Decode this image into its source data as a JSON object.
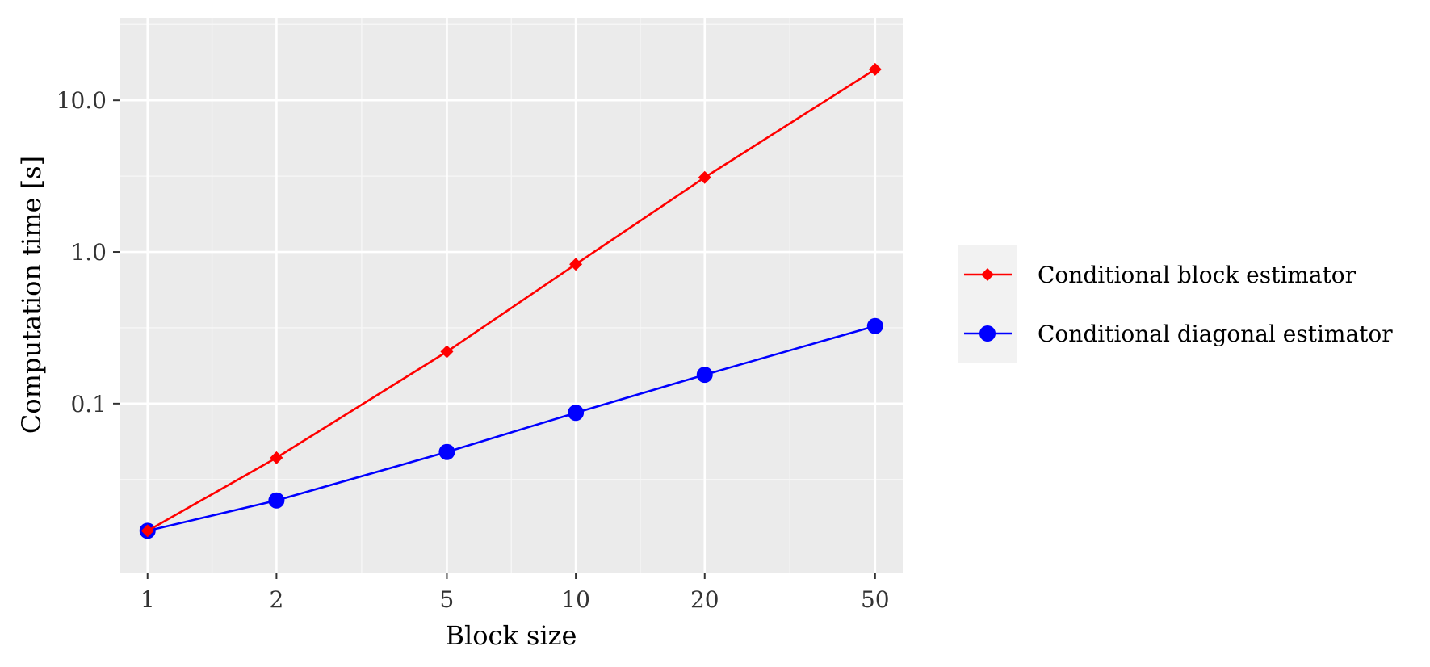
{
  "chart_data": {
    "type": "line",
    "xlabel": "Block size",
    "ylabel": "Computation time [s]",
    "x_scale": "log",
    "y_scale": "log",
    "x_ticks": [
      1,
      2,
      5,
      10,
      20,
      50
    ],
    "x_tick_labels": [
      "1",
      "2",
      "5",
      "10",
      "20",
      "50"
    ],
    "y_ticks": [
      0.1,
      1.0,
      10.0
    ],
    "y_tick_labels": [
      "0.1",
      "1.0",
      "10.0"
    ],
    "xlim": [
      0.86,
      58
    ],
    "ylim": [
      0.0077,
      35
    ],
    "grid": true,
    "legend_position": "right",
    "x": [
      1,
      2,
      5,
      10,
      20,
      50
    ],
    "series": [
      {
        "name": "Conditional block estimator",
        "color": "#ff0000",
        "marker": "diamond",
        "values": [
          0.0145,
          0.044,
          0.22,
          0.83,
          3.1,
          16.0
        ]
      },
      {
        "name": "Conditional diagonal estimator",
        "color": "#0000ff",
        "marker": "circle",
        "values": [
          0.0145,
          0.023,
          0.048,
          0.087,
          0.155,
          0.325
        ]
      }
    ],
    "colors": {
      "panel_background": "#ebebeb",
      "grid_major": "#ffffff",
      "grid_minor": "#f7f7f7",
      "legend_background": "#f2f2f2"
    }
  }
}
